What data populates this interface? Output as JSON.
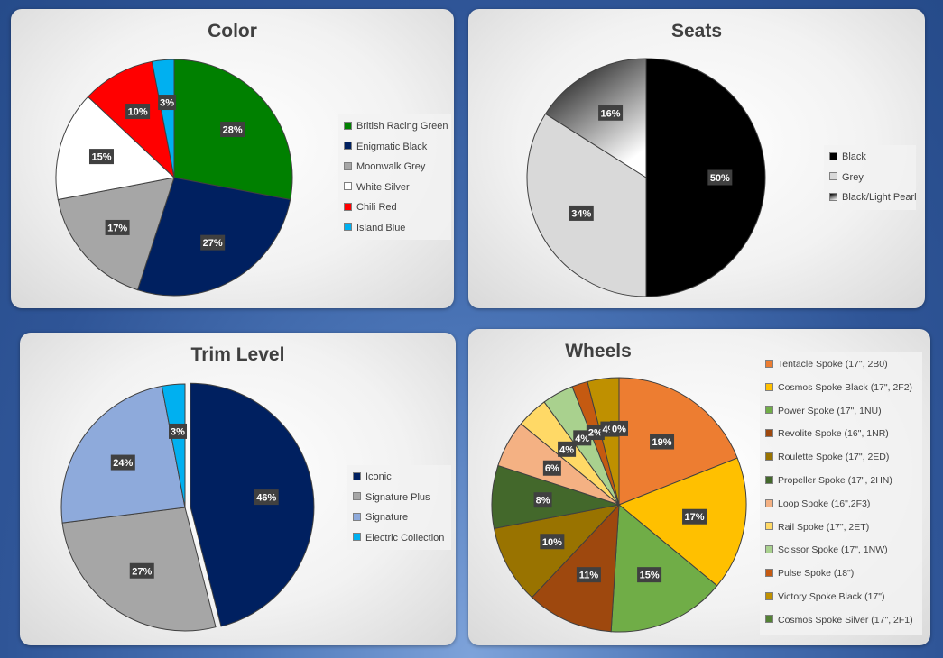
{
  "chart_data": [
    {
      "type": "pie",
      "title": "Color",
      "legend_position": "right",
      "slices": [
        {
          "label": "British Racing Green",
          "value": 28,
          "display": "28%",
          "color": "#008000"
        },
        {
          "label": "Enigmatic Black",
          "value": 27,
          "display": "27%",
          "color": "#002060"
        },
        {
          "label": "Moonwalk Grey",
          "value": 17,
          "display": "17%",
          "color": "#a6a6a6"
        },
        {
          "label": "White Silver",
          "value": 15,
          "display": "15%",
          "color": "#ffffff"
        },
        {
          "label": "Chili Red",
          "value": 10,
          "display": "10%",
          "color": "#ff0000"
        },
        {
          "label": "Island Blue",
          "value": 3,
          "display": "3%",
          "color": "#00b0f0"
        }
      ]
    },
    {
      "type": "pie",
      "title": "Seats",
      "legend_position": "right",
      "slices": [
        {
          "label": "Black",
          "value": 50,
          "display": "50%",
          "color": "#000000"
        },
        {
          "label": "Grey",
          "value": 34,
          "display": "34%",
          "color": "#d9d9d9"
        },
        {
          "label": "Black/Light Pearl",
          "value": 16,
          "display": "16%",
          "color": "gradient"
        }
      ]
    },
    {
      "type": "pie",
      "title": "Trim Level",
      "legend_position": "right",
      "slices": [
        {
          "label": "Iconic",
          "value": 46,
          "display": "46%",
          "color": "#002060"
        },
        {
          "label": "Signature Plus",
          "value": 27,
          "display": "27%",
          "color": "#a6a6a6"
        },
        {
          "label": "Signature",
          "value": 24,
          "display": "24%",
          "color": "#8eaadb"
        },
        {
          "label": "Electric Collection",
          "value": 3,
          "display": "3%",
          "color": "#00b0f0"
        }
      ]
    },
    {
      "type": "pie",
      "title": "Wheels",
      "legend_position": "right",
      "slices": [
        {
          "label": "Tentacle Spoke (17\", 2B0)",
          "value": 19,
          "display": "19%",
          "color": "#ed7d31"
        },
        {
          "label": "Cosmos Spoke Black (17\", 2F2)",
          "value": 17,
          "display": "17%",
          "color": "#ffc000"
        },
        {
          "label": "Power Spoke (17\", 1NU)",
          "value": 15,
          "display": "15%",
          "color": "#70ad47"
        },
        {
          "label": "Revolite Spoke (16\", 1NR)",
          "value": 11,
          "display": "11%",
          "color": "#9e480e"
        },
        {
          "label": "Roulette Spoke (17\", 2ED)",
          "value": 10,
          "display": "10%",
          "color": "#997300"
        },
        {
          "label": "Propeller Spoke (17\", 2HN)",
          "value": 8,
          "display": "8%",
          "color": "#43682b"
        },
        {
          "label": "Loop Spoke (16\",2F3)",
          "value": 6,
          "display": "6%",
          "color": "#f4b183"
        },
        {
          "label": "Rail Spoke (17\", 2ET)",
          "value": 4,
          "display": "4%",
          "color": "#ffd966"
        },
        {
          "label": "Scissor Spoke (17\", 1NW)",
          "value": 4,
          "display": "4%",
          "color": "#a9d18e"
        },
        {
          "label": "Pulse Spoke (18\")",
          "value": 2,
          "display": "2%",
          "color": "#c55a11"
        },
        {
          "label": "Victory Spoke Black (17\")",
          "value": 4,
          "display": "4%",
          "color": "#bf9000"
        },
        {
          "label": "Cosmos Spoke Silver (17\", 2F1)",
          "value": 0,
          "display": "0%",
          "color": "#548235"
        }
      ]
    }
  ]
}
